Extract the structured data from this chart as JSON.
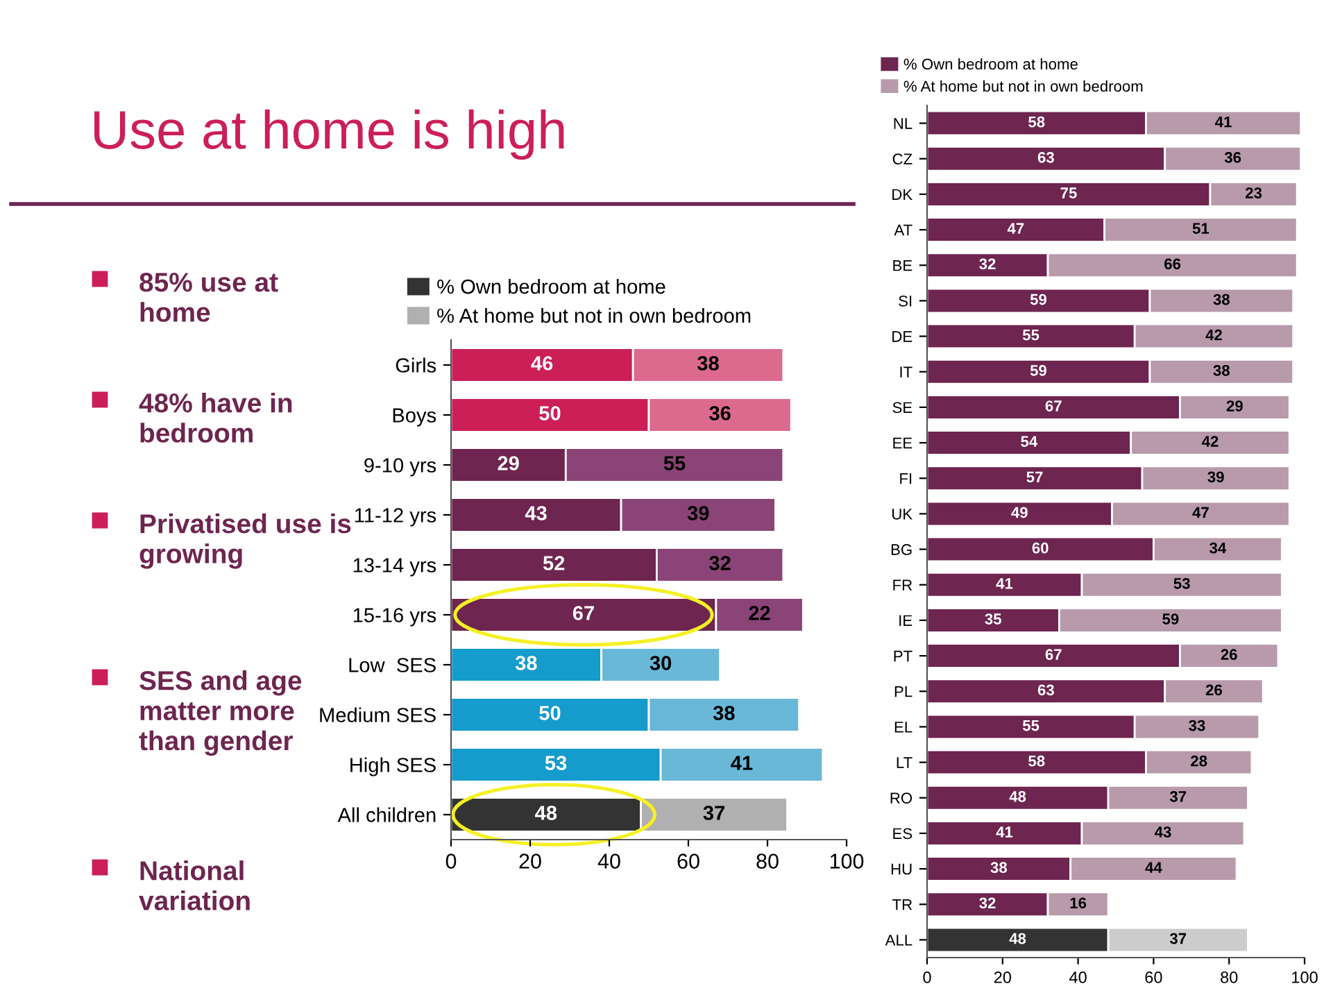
{
  "chart_data": [
    {
      "type": "bar",
      "orientation": "horizontal",
      "stacked": true,
      "title": "Use at home is high",
      "annotations": [
        "85% use at home",
        "48% have in bedroom",
        "Privatised use is growing",
        "SES and age matter more than gender",
        "National variation"
      ],
      "categories": [
        "Girls",
        "Boys",
        "9-10 yrs",
        "11-12 yrs",
        "13-14 yrs",
        "15-16 yrs",
        "Low  SES",
        "Medium SES",
        "High SES",
        "All children"
      ],
      "series": [
        {
          "name": "% Own bedroom at home",
          "color": "#333333",
          "colors": [
            "#cc1f57",
            "#cc1f57",
            "#6e2550",
            "#6e2550",
            "#6e2550",
            "#6e2550",
            "#159bcc",
            "#159bcc",
            "#159bcc",
            "#333333"
          ],
          "values": [
            46,
            50,
            29,
            43,
            52,
            67,
            38,
            50,
            53,
            48
          ]
        },
        {
          "name": "% At home but not in own bedroom",
          "color": "#b0b0b0",
          "colors": [
            "#db6a8e",
            "#db6a8e",
            "#8b4477",
            "#8b4477",
            "#8b4477",
            "#8b4477",
            "#6ab8d8",
            "#6ab8d8",
            "#6ab8d8",
            "#b0b0b0"
          ],
          "values": [
            38,
            36,
            55,
            39,
            32,
            22,
            30,
            38,
            41,
            37
          ]
        }
      ],
      "xlim": [
        0,
        100
      ],
      "xticks": [
        0,
        20,
        40,
        60,
        80,
        100
      ],
      "data_labels": true,
      "legend": "top",
      "grid": false
    },
    {
      "type": "bar",
      "orientation": "horizontal",
      "stacked": true,
      "categories": [
        "NL",
        "CZ",
        "DK",
        "AT",
        "BE",
        "SI",
        "DE",
        "IT",
        "SE",
        "EE",
        "FI",
        "UK",
        "BG",
        "FR",
        "IE",
        "PT",
        "PL",
        "EL",
        "LT",
        "RO",
        "ES",
        "HU",
        "TR",
        "ALL"
      ],
      "series": [
        {
          "name": "% Own bedroom at home",
          "color": "#6e2550",
          "colors": [
            "#6e2550",
            "#6e2550",
            "#6e2550",
            "#6e2550",
            "#6e2550",
            "#6e2550",
            "#6e2550",
            "#6e2550",
            "#6e2550",
            "#6e2550",
            "#6e2550",
            "#6e2550",
            "#6e2550",
            "#6e2550",
            "#6e2550",
            "#6e2550",
            "#6e2550",
            "#6e2550",
            "#6e2550",
            "#6e2550",
            "#6e2550",
            "#6e2550",
            "#6e2550",
            "#333333"
          ],
          "values": [
            58,
            63,
            75,
            47,
            32,
            59,
            55,
            59,
            67,
            54,
            57,
            49,
            60,
            41,
            35,
            67,
            63,
            55,
            58,
            48,
            41,
            38,
            32,
            48
          ]
        },
        {
          "name": "% At home but not in own bedroom",
          "color": "#b89aab",
          "colors": [
            "#b89aab",
            "#b89aab",
            "#b89aab",
            "#b89aab",
            "#b89aab",
            "#b89aab",
            "#b89aab",
            "#b89aab",
            "#b89aab",
            "#b89aab",
            "#b89aab",
            "#b89aab",
            "#b89aab",
            "#b89aab",
            "#b89aab",
            "#b89aab",
            "#b89aab",
            "#b89aab",
            "#b89aab",
            "#b89aab",
            "#b89aab",
            "#b89aab",
            "#b89aab",
            "#cccccc"
          ],
          "values": [
            41,
            36,
            23,
            51,
            66,
            38,
            42,
            38,
            29,
            42,
            39,
            47,
            34,
            53,
            59,
            26,
            26,
            33,
            28,
            37,
            43,
            44,
            16,
            37
          ]
        }
      ],
      "xlim": [
        0,
        100
      ],
      "xticks": [
        0,
        20,
        40,
        60,
        80,
        100
      ],
      "data_labels": true,
      "legend": "top",
      "grid": false
    }
  ]
}
